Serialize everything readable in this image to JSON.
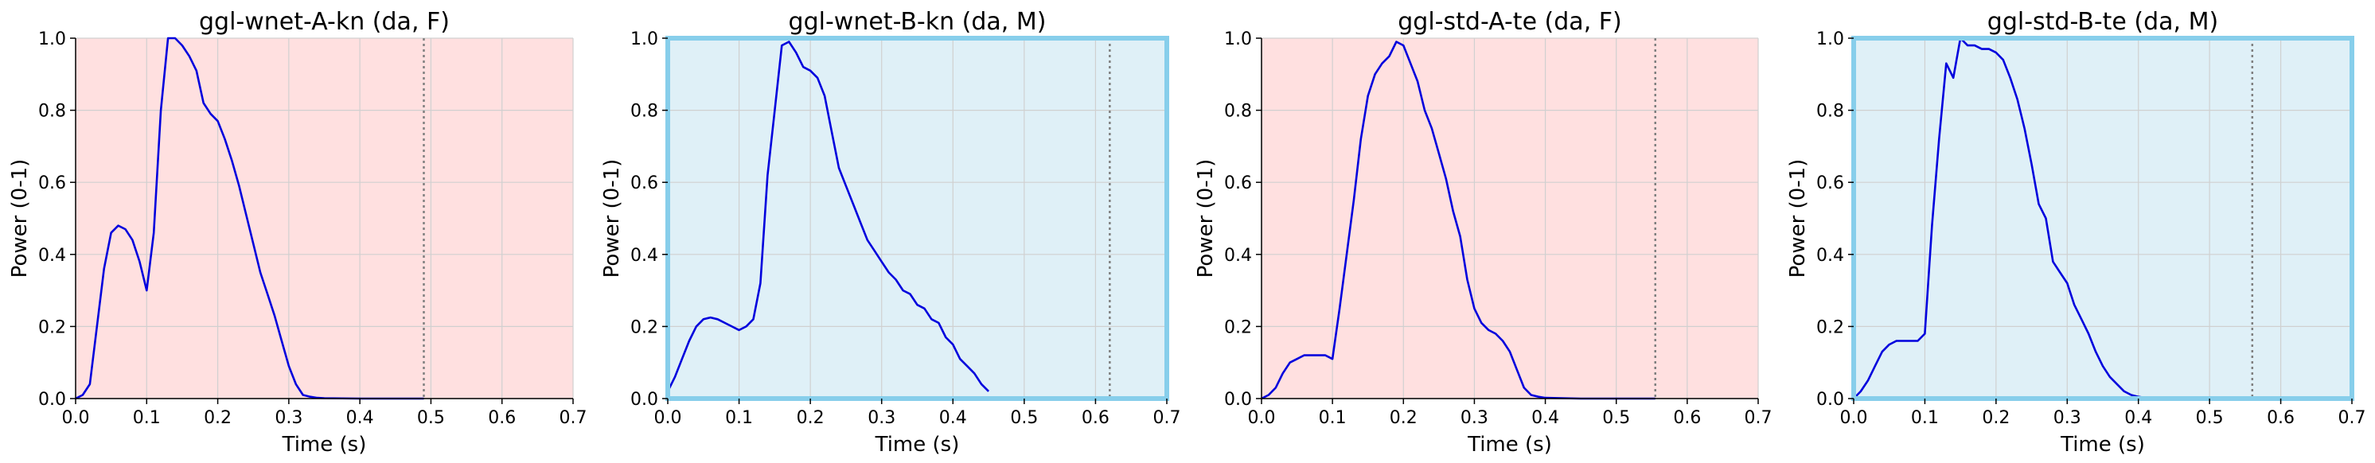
{
  "colors": {
    "female_bg": "#ffe0e0",
    "male_bg": "#dff0f7",
    "male_border": "#87ceeb",
    "line": "#0000dd",
    "grid": "#d0d0d0",
    "marker": "#808080"
  },
  "chart_data": [
    {
      "type": "line",
      "title": "ggl-wnet-A-kn (da, F)",
      "xlabel": "Time (s)",
      "ylabel": "Power (0-1)",
      "xlim": [
        0,
        0.7
      ],
      "ylim": [
        0,
        1
      ],
      "xticks": [
        "0.0",
        "0.1",
        "0.2",
        "0.3",
        "0.4",
        "0.5",
        "0.6",
        "0.7"
      ],
      "yticks": [
        "0.0",
        "0.2",
        "0.4",
        "0.6",
        "0.8",
        "1.0"
      ],
      "grid": true,
      "gender": "F",
      "end_marker": 0.49,
      "x": [
        0.0,
        0.01,
        0.02,
        0.03,
        0.04,
        0.05,
        0.06,
        0.07,
        0.08,
        0.09,
        0.1,
        0.11,
        0.12,
        0.13,
        0.14,
        0.15,
        0.16,
        0.17,
        0.18,
        0.19,
        0.2,
        0.21,
        0.22,
        0.23,
        0.24,
        0.25,
        0.26,
        0.27,
        0.28,
        0.29,
        0.3,
        0.31,
        0.32,
        0.33,
        0.34,
        0.35,
        0.4,
        0.45,
        0.49
      ],
      "y": [
        0.0,
        0.01,
        0.04,
        0.2,
        0.36,
        0.46,
        0.48,
        0.47,
        0.44,
        0.38,
        0.3,
        0.46,
        0.8,
        1.0,
        1.0,
        0.98,
        0.95,
        0.91,
        0.82,
        0.79,
        0.77,
        0.72,
        0.66,
        0.59,
        0.51,
        0.43,
        0.35,
        0.29,
        0.23,
        0.16,
        0.09,
        0.04,
        0.01,
        0.005,
        0.002,
        0.001,
        0.0,
        0.0,
        0.0
      ]
    },
    {
      "type": "line",
      "title": "ggl-wnet-B-kn (da, M)",
      "xlabel": "Time (s)",
      "ylabel": "Power (0-1)",
      "xlim": [
        0,
        0.7
      ],
      "ylim": [
        0,
        1
      ],
      "xticks": [
        "0.0",
        "0.1",
        "0.2",
        "0.3",
        "0.4",
        "0.5",
        "0.6",
        "0.7"
      ],
      "yticks": [
        "0.0",
        "0.2",
        "0.4",
        "0.6",
        "0.8",
        "1.0"
      ],
      "grid": true,
      "gender": "M",
      "end_marker": 0.62,
      "x": [
        0.0,
        0.01,
        0.02,
        0.03,
        0.04,
        0.05,
        0.06,
        0.07,
        0.08,
        0.09,
        0.1,
        0.11,
        0.12,
        0.13,
        0.14,
        0.15,
        0.16,
        0.17,
        0.18,
        0.19,
        0.2,
        0.21,
        0.22,
        0.23,
        0.24,
        0.25,
        0.26,
        0.27,
        0.28,
        0.29,
        0.3,
        0.31,
        0.32,
        0.33,
        0.34,
        0.35,
        0.36,
        0.37,
        0.38,
        0.39,
        0.4,
        0.41,
        0.42,
        0.43,
        0.44,
        0.45
      ],
      "y": [
        0.02,
        0.06,
        0.11,
        0.16,
        0.2,
        0.22,
        0.225,
        0.22,
        0.21,
        0.2,
        0.19,
        0.2,
        0.22,
        0.32,
        0.62,
        0.8,
        0.98,
        0.99,
        0.96,
        0.92,
        0.91,
        0.89,
        0.84,
        0.74,
        0.64,
        0.59,
        0.54,
        0.49,
        0.44,
        0.41,
        0.38,
        0.35,
        0.33,
        0.3,
        0.29,
        0.26,
        0.25,
        0.22,
        0.21,
        0.17,
        0.15,
        0.11,
        0.09,
        0.07,
        0.04,
        0.02
      ]
    },
    {
      "type": "line",
      "title": "ggl-std-A-te (da, F)",
      "xlabel": "Time (s)",
      "ylabel": "Power (0-1)",
      "xlim": [
        0,
        0.7
      ],
      "ylim": [
        0,
        1
      ],
      "xticks": [
        "0.0",
        "0.1",
        "0.2",
        "0.3",
        "0.4",
        "0.5",
        "0.6",
        "0.7"
      ],
      "yticks": [
        "0.0",
        "0.2",
        "0.4",
        "0.6",
        "0.8",
        "1.0"
      ],
      "grid": true,
      "gender": "F",
      "end_marker": 0.555,
      "x": [
        0.0,
        0.01,
        0.02,
        0.03,
        0.04,
        0.05,
        0.06,
        0.07,
        0.08,
        0.09,
        0.1,
        0.11,
        0.12,
        0.13,
        0.14,
        0.15,
        0.16,
        0.17,
        0.18,
        0.19,
        0.2,
        0.21,
        0.22,
        0.23,
        0.24,
        0.25,
        0.26,
        0.27,
        0.28,
        0.29,
        0.3,
        0.31,
        0.32,
        0.33,
        0.34,
        0.35,
        0.36,
        0.37,
        0.38,
        0.39,
        0.4,
        0.45,
        0.5,
        0.555
      ],
      "y": [
        0.0,
        0.01,
        0.03,
        0.07,
        0.1,
        0.11,
        0.12,
        0.12,
        0.12,
        0.12,
        0.11,
        0.25,
        0.4,
        0.55,
        0.72,
        0.84,
        0.9,
        0.93,
        0.95,
        0.99,
        0.98,
        0.93,
        0.88,
        0.8,
        0.75,
        0.68,
        0.61,
        0.52,
        0.45,
        0.33,
        0.25,
        0.21,
        0.19,
        0.18,
        0.16,
        0.13,
        0.08,
        0.03,
        0.01,
        0.005,
        0.002,
        0.0,
        0.0,
        0.0
      ]
    },
    {
      "type": "line",
      "title": "ggl-std-B-te (da, M)",
      "xlabel": "Time (s)",
      "ylabel": "Power (0-1)",
      "xlim": [
        0,
        0.7
      ],
      "ylim": [
        0,
        1
      ],
      "xticks": [
        "0.0",
        "0.1",
        "0.2",
        "0.3",
        "0.4",
        "0.5",
        "0.6",
        "0.7"
      ],
      "yticks": [
        "0.0",
        "0.2",
        "0.4",
        "0.6",
        "0.8",
        "1.0"
      ],
      "grid": true,
      "gender": "M",
      "end_marker": 0.56,
      "x": [
        0.0,
        0.01,
        0.02,
        0.03,
        0.04,
        0.05,
        0.06,
        0.07,
        0.08,
        0.09,
        0.1,
        0.11,
        0.12,
        0.13,
        0.14,
        0.15,
        0.16,
        0.17,
        0.18,
        0.19,
        0.2,
        0.21,
        0.22,
        0.23,
        0.24,
        0.25,
        0.26,
        0.27,
        0.28,
        0.29,
        0.3,
        0.31,
        0.32,
        0.33,
        0.34,
        0.35,
        0.36,
        0.37,
        0.38,
        0.39,
        0.4,
        0.41,
        0.42,
        0.43
      ],
      "y": [
        0.0,
        0.02,
        0.05,
        0.09,
        0.13,
        0.15,
        0.16,
        0.16,
        0.16,
        0.16,
        0.18,
        0.48,
        0.72,
        0.93,
        0.89,
        1.0,
        0.98,
        0.98,
        0.97,
        0.97,
        0.96,
        0.94,
        0.89,
        0.83,
        0.75,
        0.65,
        0.54,
        0.5,
        0.38,
        0.35,
        0.32,
        0.26,
        0.22,
        0.18,
        0.13,
        0.09,
        0.06,
        0.04,
        0.02,
        0.01,
        0.005,
        0.002,
        0.001,
        0.0
      ]
    }
  ]
}
